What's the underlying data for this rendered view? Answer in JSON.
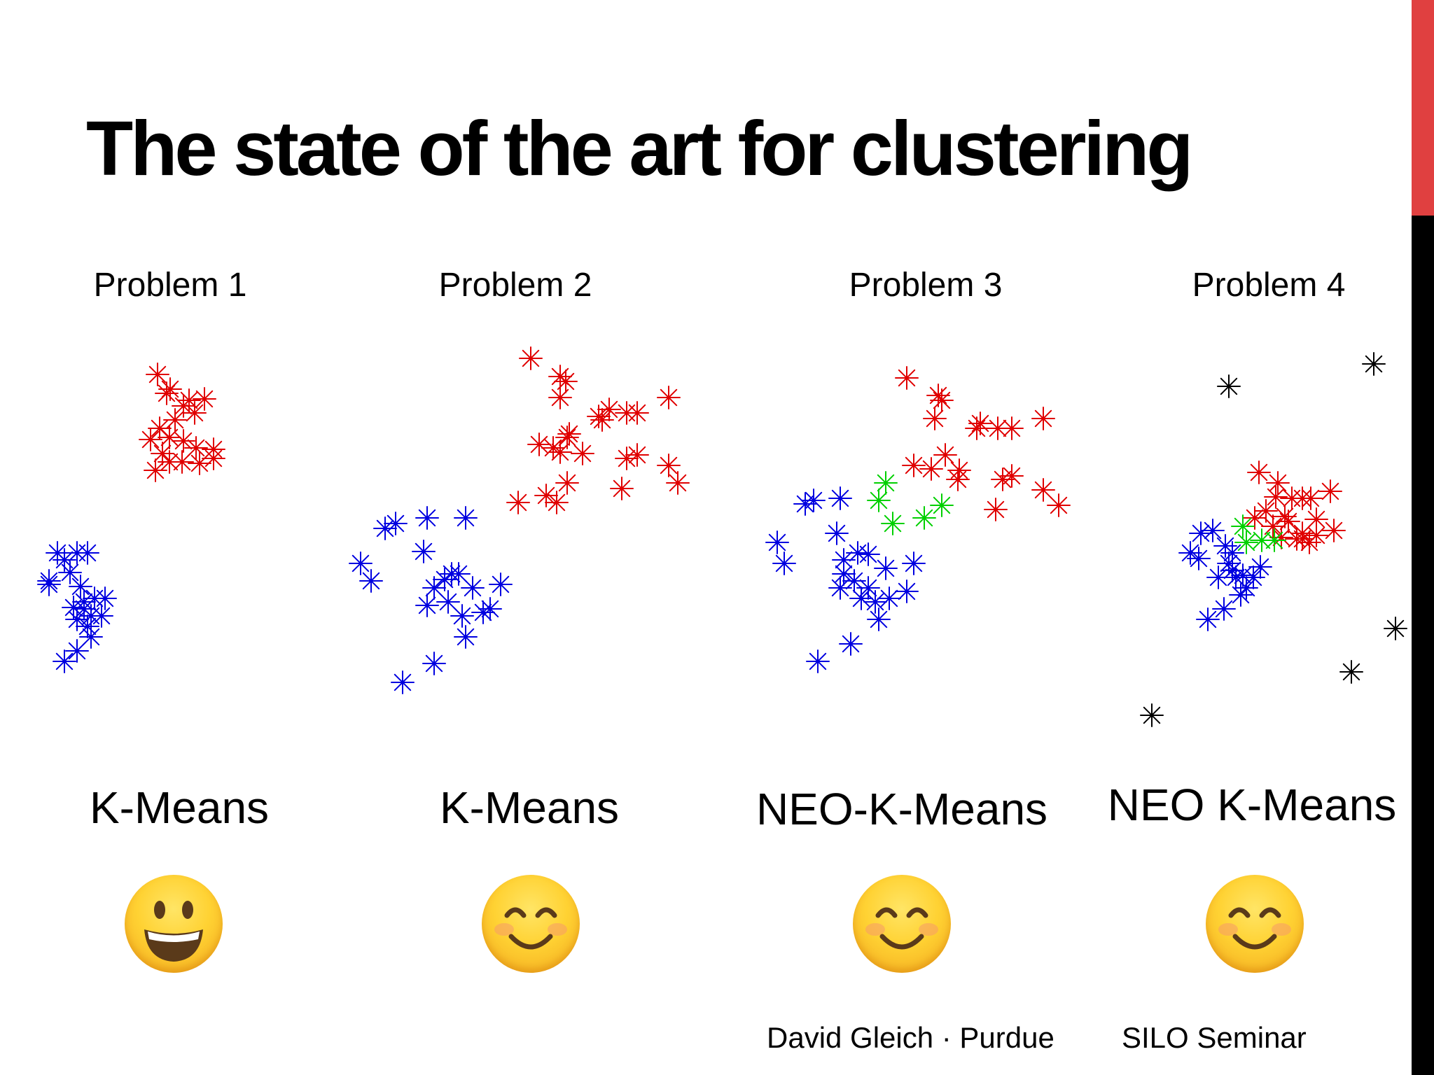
{
  "slide": {
    "title": "The state of the art for clustering",
    "accent_color": "#e04040",
    "footer_left": "David Gleich · Purdue",
    "footer_right": "SILO Seminar"
  },
  "panels": [
    {
      "problem": "Problem 1",
      "method": "K-Means",
      "emoji": "grinning-face-icon"
    },
    {
      "problem": "Problem 2",
      "method": "K-Means",
      "emoji": "smiling-face-icon"
    },
    {
      "problem": "Problem 3",
      "method": "NEO-K-Means",
      "emoji": "smiling-face-icon"
    },
    {
      "problem": "Problem 4",
      "method": "NEO K-Means",
      "emoji": "smiling-face-icon"
    }
  ],
  "chart_data": [
    {
      "type": "scatter",
      "title": "Problem 1",
      "marker": "asterisk",
      "series": [
        {
          "color": "#e00000",
          "points": [
            [
              225,
              535
            ],
            [
              243,
              556
            ],
            [
              238,
              562
            ],
            [
              270,
              572
            ],
            [
              292,
              570
            ],
            [
              278,
              590
            ],
            [
              262,
              580
            ],
            [
              250,
              600
            ],
            [
              228,
              612
            ],
            [
              242,
              625
            ],
            [
              262,
              630
            ],
            [
              280,
              640
            ],
            [
              305,
              642
            ],
            [
              215,
              628
            ],
            [
              232,
              648
            ],
            [
              260,
              660
            ],
            [
              285,
              662
            ],
            [
              305,
              655
            ],
            [
              222,
              672
            ],
            [
              242,
              660
            ]
          ]
        },
        {
          "color": "#0000e0",
          "points": [
            [
              82,
              790
            ],
            [
              92,
              800
            ],
            [
              110,
              790
            ],
            [
              125,
              790
            ],
            [
              70,
              830
            ],
            [
              100,
              818
            ],
            [
              115,
              838
            ],
            [
              120,
              860
            ],
            [
              135,
              855
            ],
            [
              150,
              855
            ],
            [
              105,
              868
            ],
            [
              120,
              870
            ],
            [
              130,
              880
            ],
            [
              145,
              880
            ],
            [
              110,
              885
            ],
            [
              125,
              895
            ],
            [
              130,
              910
            ],
            [
              110,
              930
            ],
            [
              92,
              945
            ],
            [
              70,
              835
            ]
          ]
        }
      ]
    },
    {
      "type": "scatter",
      "title": "Problem 2",
      "marker": "asterisk",
      "series": [
        {
          "color": "#e00000",
          "points": [
            [
              758,
              512
            ],
            [
              800,
              538
            ],
            [
              808,
              545
            ],
            [
              800,
              568
            ],
            [
              855,
              595
            ],
            [
              870,
              585
            ],
            [
              895,
              590
            ],
            [
              910,
              590
            ],
            [
              955,
              568
            ],
            [
              860,
              600
            ],
            [
              813,
              620
            ],
            [
              770,
              635
            ],
            [
              790,
              640
            ],
            [
              800,
              646
            ],
            [
              832,
              648
            ],
            [
              810,
              690
            ],
            [
              780,
              708
            ],
            [
              740,
              718
            ],
            [
              895,
              655
            ],
            [
              910,
              650
            ],
            [
              955,
              665
            ],
            [
              968,
              690
            ],
            [
              888,
              698
            ],
            [
              795,
              718
            ],
            [
              810,
              625
            ]
          ]
        },
        {
          "color": "#0000e0",
          "points": [
            [
              550,
              755
            ],
            [
              565,
              748
            ],
            [
              610,
              740
            ],
            [
              665,
              740
            ],
            [
              515,
              805
            ],
            [
              530,
              830
            ],
            [
              605,
              788
            ],
            [
              645,
              820
            ],
            [
              635,
              828
            ],
            [
              655,
              820
            ],
            [
              620,
              840
            ],
            [
              675,
              840
            ],
            [
              715,
              835
            ],
            [
              640,
              860
            ],
            [
              610,
              865
            ],
            [
              660,
              880
            ],
            [
              690,
              875
            ],
            [
              700,
              870
            ],
            [
              665,
              910
            ],
            [
              620,
              948
            ],
            [
              575,
              975
            ]
          ]
        }
      ]
    },
    {
      "type": "scatter",
      "title": "Problem 3",
      "marker": "asterisk",
      "series": [
        {
          "color": "#e00000",
          "points": [
            [
              1295,
              540
            ],
            [
              1340,
              565
            ],
            [
              1345,
              572
            ],
            [
              1335,
              598
            ],
            [
              1400,
              605
            ],
            [
              1395,
              612
            ],
            [
              1425,
              612
            ],
            [
              1445,
              612
            ],
            [
              1490,
              598
            ],
            [
              1305,
              665
            ],
            [
              1330,
              670
            ],
            [
              1350,
              650
            ],
            [
              1370,
              672
            ],
            [
              1368,
              685
            ],
            [
              1432,
              685
            ],
            [
              1445,
              680
            ],
            [
              1490,
              700
            ],
            [
              1512,
              722
            ],
            [
              1422,
              728
            ]
          ]
        },
        {
          "color": "#00d000",
          "points": [
            [
              1265,
              690
            ],
            [
              1255,
              715
            ],
            [
              1275,
              748
            ],
            [
              1320,
              740
            ],
            [
              1345,
              722
            ]
          ]
        },
        {
          "color": "#0000e0",
          "points": [
            [
              1150,
              720
            ],
            [
              1162,
              715
            ],
            [
              1200,
              712
            ],
            [
              1195,
              762
            ],
            [
              1110,
              775
            ],
            [
              1120,
              805
            ],
            [
              1240,
              792
            ],
            [
              1225,
              790
            ],
            [
              1205,
              800
            ],
            [
              1305,
              805
            ],
            [
              1265,
              812
            ],
            [
              1205,
              820
            ],
            [
              1220,
              830
            ],
            [
              1200,
              840
            ],
            [
              1240,
              840
            ],
            [
              1230,
              855
            ],
            [
              1250,
              860
            ],
            [
              1270,
              855
            ],
            [
              1295,
              845
            ],
            [
              1255,
              885
            ],
            [
              1215,
              920
            ],
            [
              1168,
              945
            ]
          ]
        }
      ]
    },
    {
      "type": "scatter",
      "title": "Problem 4",
      "marker": "asterisk",
      "series": [
        {
          "color": "#000000",
          "points": [
            [
              1755,
              552
            ],
            [
              1962,
              520
            ],
            [
              1993,
              898
            ],
            [
              1930,
              960
            ],
            [
              1645,
              1022
            ]
          ]
        },
        {
          "color": "#e00000",
          "points": [
            [
              1798,
              675
            ],
            [
              1825,
              690
            ],
            [
              1822,
              710
            ],
            [
              1845,
              712
            ],
            [
              1860,
              712
            ],
            [
              1872,
              712
            ],
            [
              1900,
              702
            ],
            [
              1808,
              730
            ],
            [
              1835,
              738
            ],
            [
              1840,
              745
            ],
            [
              1792,
              740
            ],
            [
              1818,
              752
            ],
            [
              1880,
              742
            ],
            [
              1905,
              758
            ],
            [
              1860,
              762
            ],
            [
              1880,
              765
            ],
            [
              1852,
              770
            ],
            [
              1830,
              768
            ],
            [
              1860,
              770
            ],
            [
              1870,
              775
            ]
          ]
        },
        {
          "color": "#00d000",
          "points": [
            [
              1775,
              752
            ],
            [
              1780,
              775
            ],
            [
              1802,
              772
            ],
            [
              1820,
              772
            ]
          ]
        },
        {
          "color": "#0000e0",
          "points": [
            [
              1715,
              762
            ],
            [
              1732,
              758
            ],
            [
              1700,
              790
            ],
            [
              1712,
              798
            ],
            [
              1750,
              780
            ],
            [
              1760,
              790
            ],
            [
              1755,
              805
            ],
            [
              1760,
              815
            ],
            [
              1765,
              825
            ],
            [
              1740,
              825
            ],
            [
              1775,
              822
            ],
            [
              1790,
              825
            ],
            [
              1800,
              810
            ],
            [
              1780,
              840
            ],
            [
              1772,
              850
            ],
            [
              1748,
              870
            ],
            [
              1725,
              885
            ]
          ]
        }
      ]
    }
  ]
}
